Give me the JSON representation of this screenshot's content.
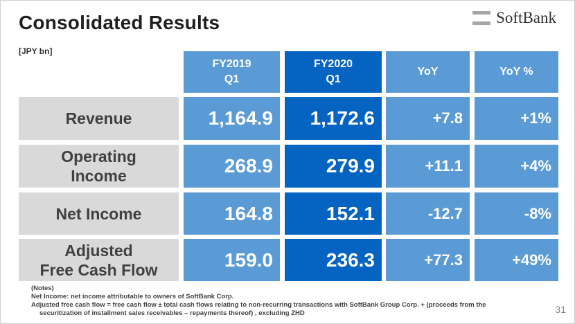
{
  "slide": {
    "title": "Consolidated Results",
    "unit": "[JPY bn]",
    "logo_text": "SoftBank",
    "page_number": "31"
  },
  "columns": {
    "fy2019": [
      "FY2019",
      "Q1"
    ],
    "fy2020": [
      "FY2020",
      "Q1"
    ],
    "yoy": "YoY",
    "yoy_pct": "YoY %"
  },
  "rows": [
    {
      "label_lines": [
        "Revenue"
      ],
      "fy2019": "1,164.9",
      "fy2020": "1,172.6",
      "yoy": "+7.8",
      "yoy_pct": "+1%"
    },
    {
      "label_lines": [
        "Operating",
        "Income"
      ],
      "fy2019": "268.9",
      "fy2020": "279.9",
      "yoy": "+11.1",
      "yoy_pct": "+4%"
    },
    {
      "label_lines": [
        "Net Income"
      ],
      "fy2019": "164.8",
      "fy2020": "152.1",
      "yoy": "-12.7",
      "yoy_pct": "-8%"
    },
    {
      "label_lines": [
        "Adjusted",
        "Free Cash Flow"
      ],
      "fy2019": "159.0",
      "fy2020": "236.3",
      "yoy": "+77.3",
      "yoy_pct": "+49%"
    }
  ],
  "notes": {
    "heading": "(Notes)",
    "line1": "Net Income: net income attributable to owners of SoftBank Corp.",
    "line2": "Adjusted free cash flow = free cash flow ± total cash flows relating to non-recurring transactions with SoftBank Group Corp. + (proceeds from the",
    "line3": "securitization of installment sales receivables – repayments thereof) , excluding ZHD"
  },
  "colors": {
    "header_light": "#5b9bd5",
    "header_dark": "#0563c1",
    "cell_light": "#5b9bd5",
    "cell_dark": "#0563c1",
    "label_bg": "#d9d9d9",
    "logo_mark": "#a6a6a6"
  },
  "icons": {
    "logo": "softbank-logo-mark"
  }
}
